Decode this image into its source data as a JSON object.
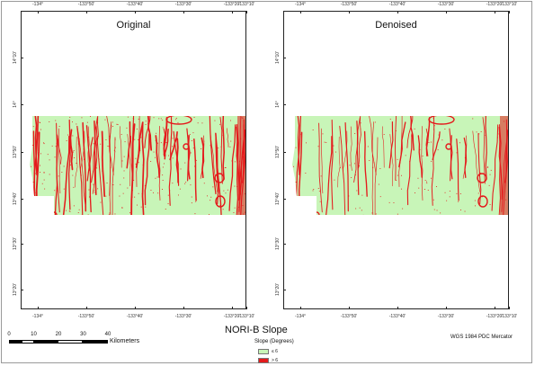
{
  "title": "NORI-B Slope",
  "crs": "WGS 1984 PDC Mercator",
  "panels": {
    "left": {
      "title": "Original"
    },
    "right": {
      "title": "Denoised"
    }
  },
  "graticule": {
    "lon_labels": [
      "-134°",
      "-133°50'",
      "-133°40'",
      "-133°30'",
      "-133°20'",
      "-133°10'"
    ],
    "lat_labels": [
      "14°10'",
      "14°",
      "13°50'",
      "13°40'",
      "13°30'",
      "13°20'"
    ]
  },
  "legend": {
    "heading": "Slope (Degrees)",
    "items": [
      {
        "label": "≤ 6",
        "color": "#c8f5b8"
      },
      {
        "label": "> 6",
        "color": "#e41a1c"
      }
    ]
  },
  "scalebar": {
    "ticks": [
      "0",
      "10",
      "20",
      "30",
      "40"
    ],
    "unit": "Kilometers"
  },
  "colors": {
    "flat": "#c8f5b8",
    "steep": "#e41a1c",
    "frame": "#222222"
  },
  "icons": [
    "scale-bar-icon",
    "legend-swatch-icon"
  ]
}
